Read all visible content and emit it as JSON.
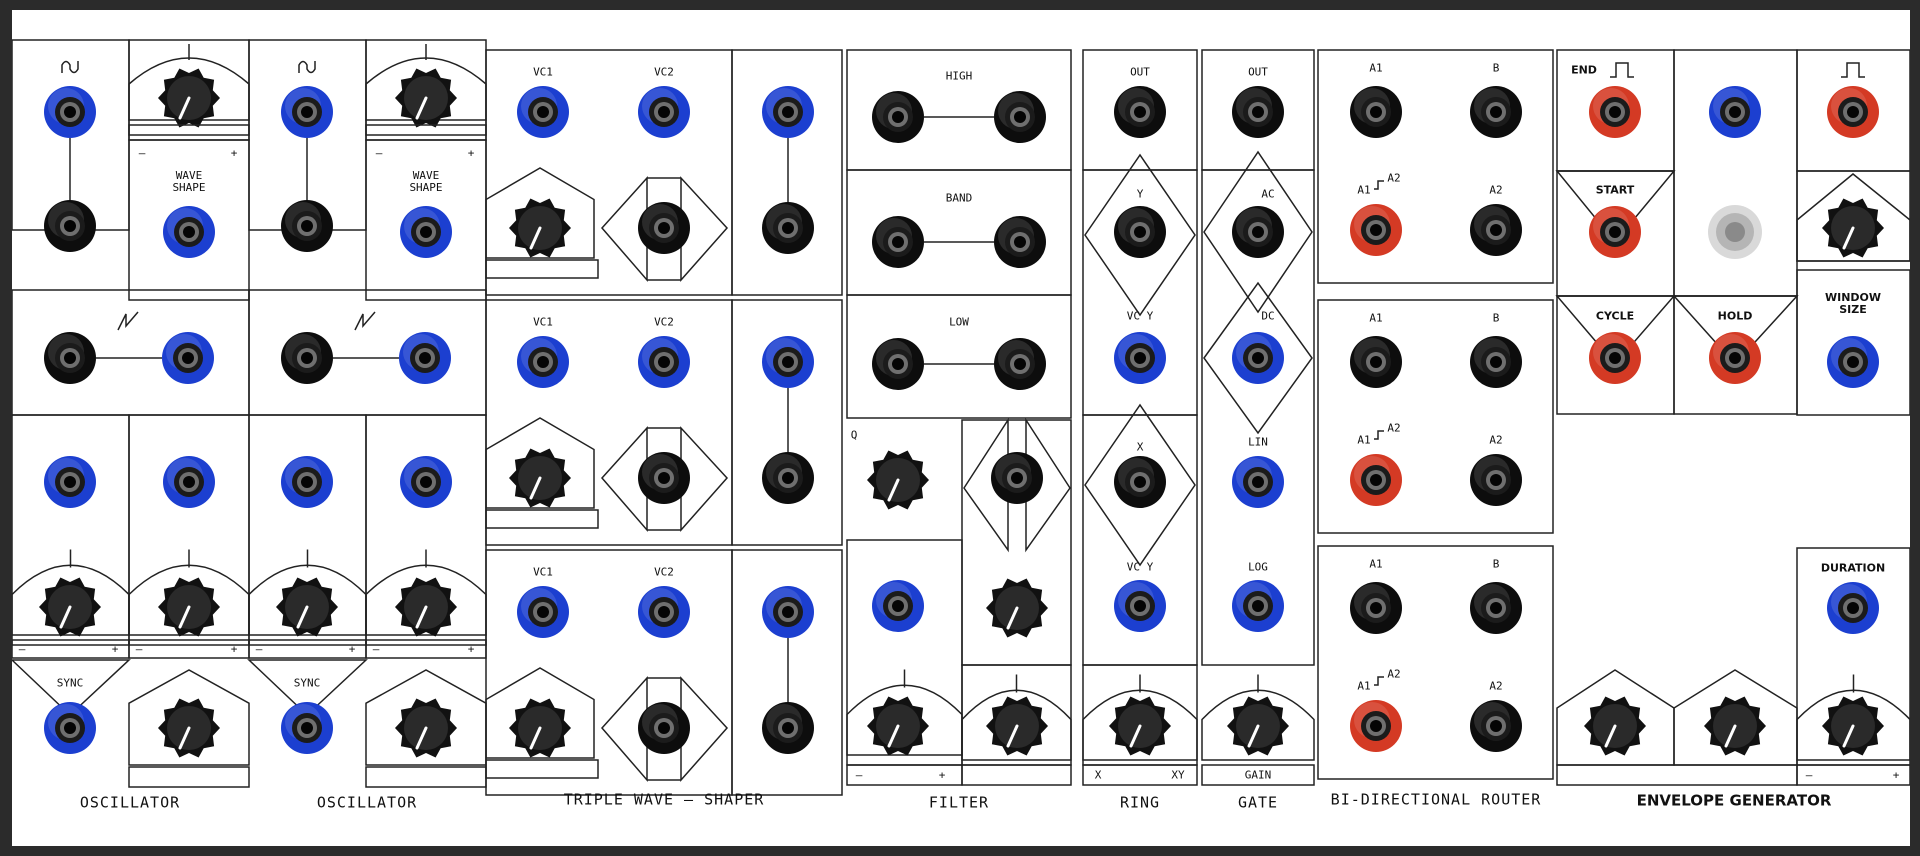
{
  "modules": {
    "oscillator_1": {
      "title": "OSCILLATOR",
      "wave_shape": "WAVE\nSHAPE",
      "sync": "SYNC",
      "minus": "–",
      "plus": "+"
    },
    "oscillator_2": {
      "title": "OSCILLATOR",
      "wave_shape": "WAVE\nSHAPE",
      "sync": "SYNC",
      "minus": "–",
      "plus": "+"
    },
    "triple_wave_shaper": {
      "title": "TRIPLE  WAVE – SHAPER",
      "vc1": "VC1",
      "vc2": "VC2"
    },
    "filter": {
      "title": "FILTER",
      "high": "HIGH",
      "band": "BAND",
      "low": "LOW",
      "q": "Q",
      "minus": "–",
      "plus": "+"
    },
    "ring": {
      "title": "RING",
      "out": "OUT",
      "y": "Y",
      "vc_y": "VC Y",
      "x": "X",
      "x_label": "X",
      "xy_label": "XY"
    },
    "gate": {
      "title": "GATE",
      "out": "OUT",
      "ac": "AC",
      "dc": "DC",
      "lin": "LIN",
      "log": "LOG",
      "gain": "GAIN"
    },
    "bi_directional_router": {
      "title": "BI-DIRECTIONAL  ROUTER",
      "a1": "A1",
      "b": "B",
      "a1a2": "A1",
      "a2": "A2"
    },
    "envelope_generator": {
      "title": "ENVELOPE GENERATOR",
      "end": "END",
      "start": "START",
      "cycle": "CYCLE",
      "hold": "HOLD",
      "window_size": "WINDOW\nSIZE",
      "duration": "DURATION",
      "minus": "–",
      "plus": "+"
    }
  },
  "colors": {
    "panel": "#ffffff",
    "frame": "#2b2b2b",
    "jack_blue": "#1c3fd0",
    "jack_red": "#d43a24",
    "jack_black": "#0d0d0d",
    "knob": "#111111",
    "line": "#222222"
  }
}
